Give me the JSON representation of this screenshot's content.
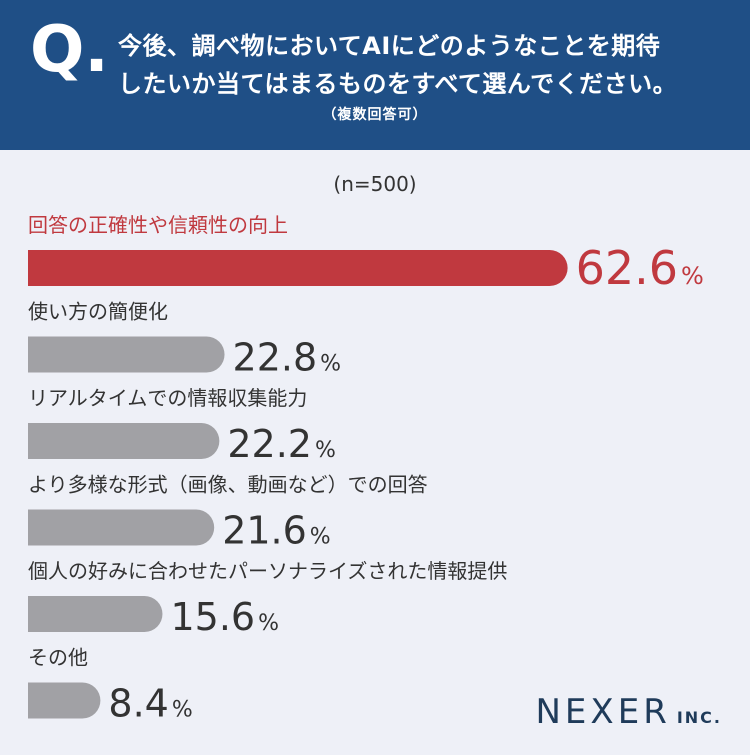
{
  "header": {
    "q_mark": "Q.",
    "question_line1": "今後、調べ物においてAIにどのようなことを期待",
    "question_line2": "したいか当てはまるものをすべて選んでください。",
    "note": "（複数回答可）"
  },
  "sample_size": "(n=500)",
  "chart_data": {
    "type": "bar",
    "orientation": "horizontal",
    "categories": [
      "回答の正確性や信頼性の向上",
      "使い方の簡便化",
      "リアルタイムでの情報収集能力",
      "より多様な形式（画像、動画など）での回答",
      "個人の好みに合わせたパーソナライズされた情報提供",
      "その他"
    ],
    "values": [
      62.6,
      22.8,
      22.2,
      21.6,
      15.6,
      8.4
    ],
    "value_labels": [
      "62.6",
      "22.8",
      "22.2",
      "21.6",
      "15.6",
      "8.4"
    ],
    "unit": "%",
    "highlight_index": 0,
    "colors": {
      "highlight": "#c0393f",
      "default": "#a1a1a5",
      "label_default": "#333333"
    }
  },
  "colors": {
    "header_bg": "#1f4f86",
    "page_bg": "#eef0f7"
  },
  "logo": {
    "main": "NEXER",
    "suffix": "INC."
  }
}
